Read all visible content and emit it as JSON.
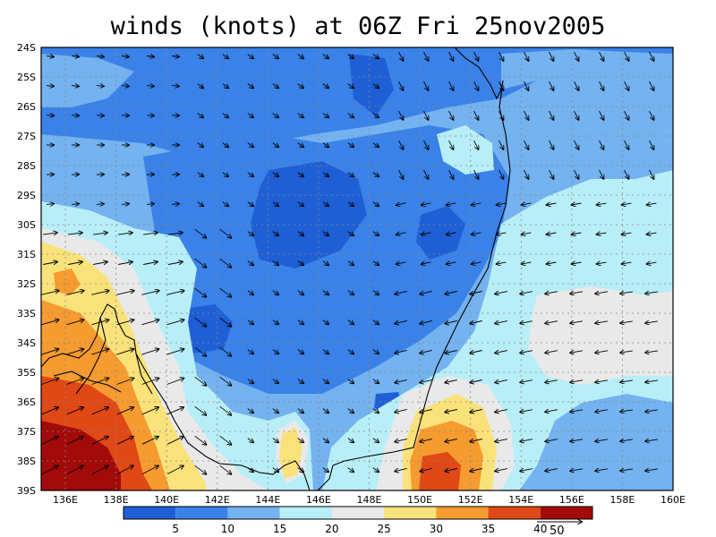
{
  "title": "winds (knots) at 06Z Fri 25nov2005",
  "lat_labels": [
    "24S",
    "25S",
    "26S",
    "27S",
    "28S",
    "29S",
    "30S",
    "31S",
    "32S",
    "33S",
    "34S",
    "35S",
    "36S",
    "37S",
    "38S",
    "39S"
  ],
  "lon_labels": [
    "136E",
    "138E",
    "140E",
    "142E",
    "144E",
    "146E",
    "148E",
    "150E",
    "152E",
    "154E",
    "156E",
    "158E",
    "160E"
  ],
  "colorbar": {
    "colors": [
      "#1f5fd6",
      "#3a82e8",
      "#74b2f0",
      "#b8eef7",
      "#e9e9e9",
      "#f9e27a",
      "#f59b2f",
      "#e04816",
      "#a30a0a"
    ],
    "labels": [
      "5",
      "10",
      "15",
      "20",
      "25",
      "30",
      "35",
      "40"
    ]
  },
  "reference_vector": {
    "label": "50"
  },
  "colors": {
    "c1": "#1f5fd6",
    "c2": "#3a82e8",
    "c3": "#74b2f0",
    "c4": "#b8eef7",
    "c5": "#e9e9e9",
    "c6": "#f9e27a",
    "c7": "#f59b2f",
    "c8": "#e04816",
    "c9": "#a30a0a"
  }
}
